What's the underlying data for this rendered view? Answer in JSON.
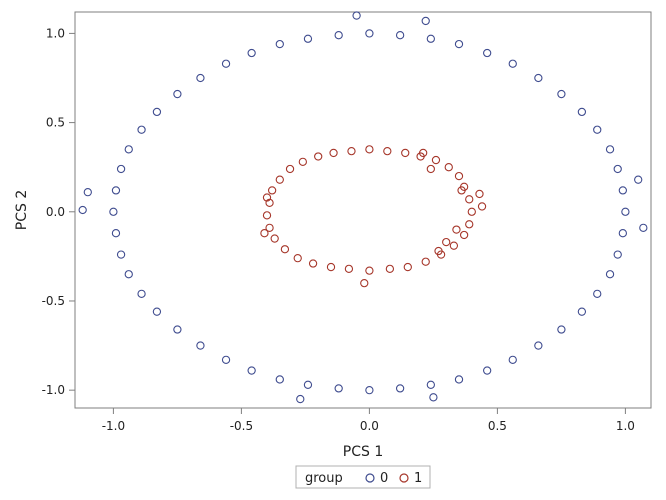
{
  "chart_data": {
    "type": "scatter",
    "title": "",
    "xlabel": "PCS 1",
    "ylabel": "PCS 2",
    "xlim": [
      -1.15,
      1.1
    ],
    "ylim": [
      -1.1,
      1.12
    ],
    "x_ticks": [
      -1.0,
      -0.5,
      0.0,
      0.5,
      1.0
    ],
    "x_tick_labels": [
      "-1.0",
      "-0.5",
      "0.0",
      "0.5",
      "1.0"
    ],
    "y_ticks": [
      -1.0,
      -0.5,
      0.0,
      0.5,
      1.0
    ],
    "y_tick_labels": [
      "-1.0",
      "-0.5",
      "0.0",
      "0.5",
      "1.0"
    ],
    "grid": false,
    "legend": {
      "title": "group",
      "placement": "bottom-center"
    },
    "series": [
      {
        "name": "0",
        "color": "#3f4c8f",
        "marker": "circle-open",
        "points": [
          [
            1.0,
            0.0
          ],
          [
            0.99,
            0.12
          ],
          [
            0.97,
            0.24
          ],
          [
            0.94,
            0.35
          ],
          [
            0.89,
            0.46
          ],
          [
            0.83,
            0.56
          ],
          [
            0.75,
            0.66
          ],
          [
            0.66,
            0.75
          ],
          [
            0.56,
            0.83
          ],
          [
            0.46,
            0.89
          ],
          [
            0.35,
            0.94
          ],
          [
            0.24,
            0.97
          ],
          [
            0.12,
            0.99
          ],
          [
            0.0,
            1.0
          ],
          [
            -0.12,
            0.99
          ],
          [
            -0.24,
            0.97
          ],
          [
            -0.35,
            0.94
          ],
          [
            -0.46,
            0.89
          ],
          [
            -0.56,
            0.83
          ],
          [
            -0.66,
            0.75
          ],
          [
            -0.75,
            0.66
          ],
          [
            -0.83,
            0.56
          ],
          [
            -0.89,
            0.46
          ],
          [
            -0.94,
            0.35
          ],
          [
            -0.97,
            0.24
          ],
          [
            -0.99,
            0.12
          ],
          [
            -1.0,
            0.0
          ],
          [
            -0.99,
            -0.12
          ],
          [
            -0.97,
            -0.24
          ],
          [
            -0.94,
            -0.35
          ],
          [
            -0.89,
            -0.46
          ],
          [
            -0.83,
            -0.56
          ],
          [
            -0.75,
            -0.66
          ],
          [
            -0.66,
            -0.75
          ],
          [
            -0.56,
            -0.83
          ],
          [
            -0.46,
            -0.89
          ],
          [
            -0.35,
            -0.94
          ],
          [
            -0.24,
            -0.97
          ],
          [
            -0.12,
            -0.99
          ],
          [
            0.0,
            -1.0
          ],
          [
            0.12,
            -0.99
          ],
          [
            0.24,
            -0.97
          ],
          [
            0.35,
            -0.94
          ],
          [
            0.46,
            -0.89
          ],
          [
            0.56,
            -0.83
          ],
          [
            0.66,
            -0.75
          ],
          [
            0.75,
            -0.66
          ],
          [
            0.83,
            -0.56
          ],
          [
            0.89,
            -0.46
          ],
          [
            0.94,
            -0.35
          ],
          [
            0.97,
            -0.24
          ],
          [
            0.99,
            -0.12
          ],
          [
            -1.12,
            0.01
          ],
          [
            -1.1,
            0.11
          ],
          [
            -0.05,
            1.1
          ],
          [
            0.22,
            1.07
          ],
          [
            -0.27,
            -1.05
          ],
          [
            0.25,
            -1.04
          ],
          [
            1.07,
            -0.09
          ],
          [
            1.05,
            0.18
          ]
        ]
      },
      {
        "name": "1",
        "color": "#a6362a",
        "marker": "circle-open",
        "points": [
          [
            0.4,
            0.0
          ],
          [
            0.39,
            0.07
          ],
          [
            0.37,
            0.14
          ],
          [
            0.35,
            0.2
          ],
          [
            0.31,
            0.25
          ],
          [
            0.26,
            0.29
          ],
          [
            0.2,
            0.31
          ],
          [
            0.14,
            0.33
          ],
          [
            0.07,
            0.34
          ],
          [
            0.0,
            0.35
          ],
          [
            -0.07,
            0.34
          ],
          [
            -0.14,
            0.33
          ],
          [
            -0.2,
            0.31
          ],
          [
            -0.26,
            0.28
          ],
          [
            -0.31,
            0.24
          ],
          [
            -0.35,
            0.18
          ],
          [
            -0.38,
            0.12
          ],
          [
            -0.39,
            0.05
          ],
          [
            -0.4,
            -0.02
          ],
          [
            -0.39,
            -0.09
          ],
          [
            -0.37,
            -0.15
          ],
          [
            -0.33,
            -0.21
          ],
          [
            -0.28,
            -0.26
          ],
          [
            -0.22,
            -0.29
          ],
          [
            -0.15,
            -0.31
          ],
          [
            -0.08,
            -0.32
          ],
          [
            0.0,
            -0.33
          ],
          [
            0.08,
            -0.32
          ],
          [
            0.15,
            -0.31
          ],
          [
            0.22,
            -0.28
          ],
          [
            0.28,
            -0.24
          ],
          [
            0.33,
            -0.19
          ],
          [
            0.37,
            -0.13
          ],
          [
            0.39,
            -0.07
          ],
          [
            0.44,
            0.03
          ],
          [
            0.43,
            0.1
          ],
          [
            0.27,
            -0.22
          ],
          [
            0.3,
            -0.17
          ],
          [
            0.24,
            0.24
          ],
          [
            -0.4,
            0.08
          ],
          [
            -0.41,
            -0.12
          ],
          [
            0.21,
            0.33
          ],
          [
            0.36,
            0.12
          ],
          [
            0.34,
            -0.1
          ],
          [
            -0.02,
            -0.4
          ]
        ]
      }
    ]
  }
}
